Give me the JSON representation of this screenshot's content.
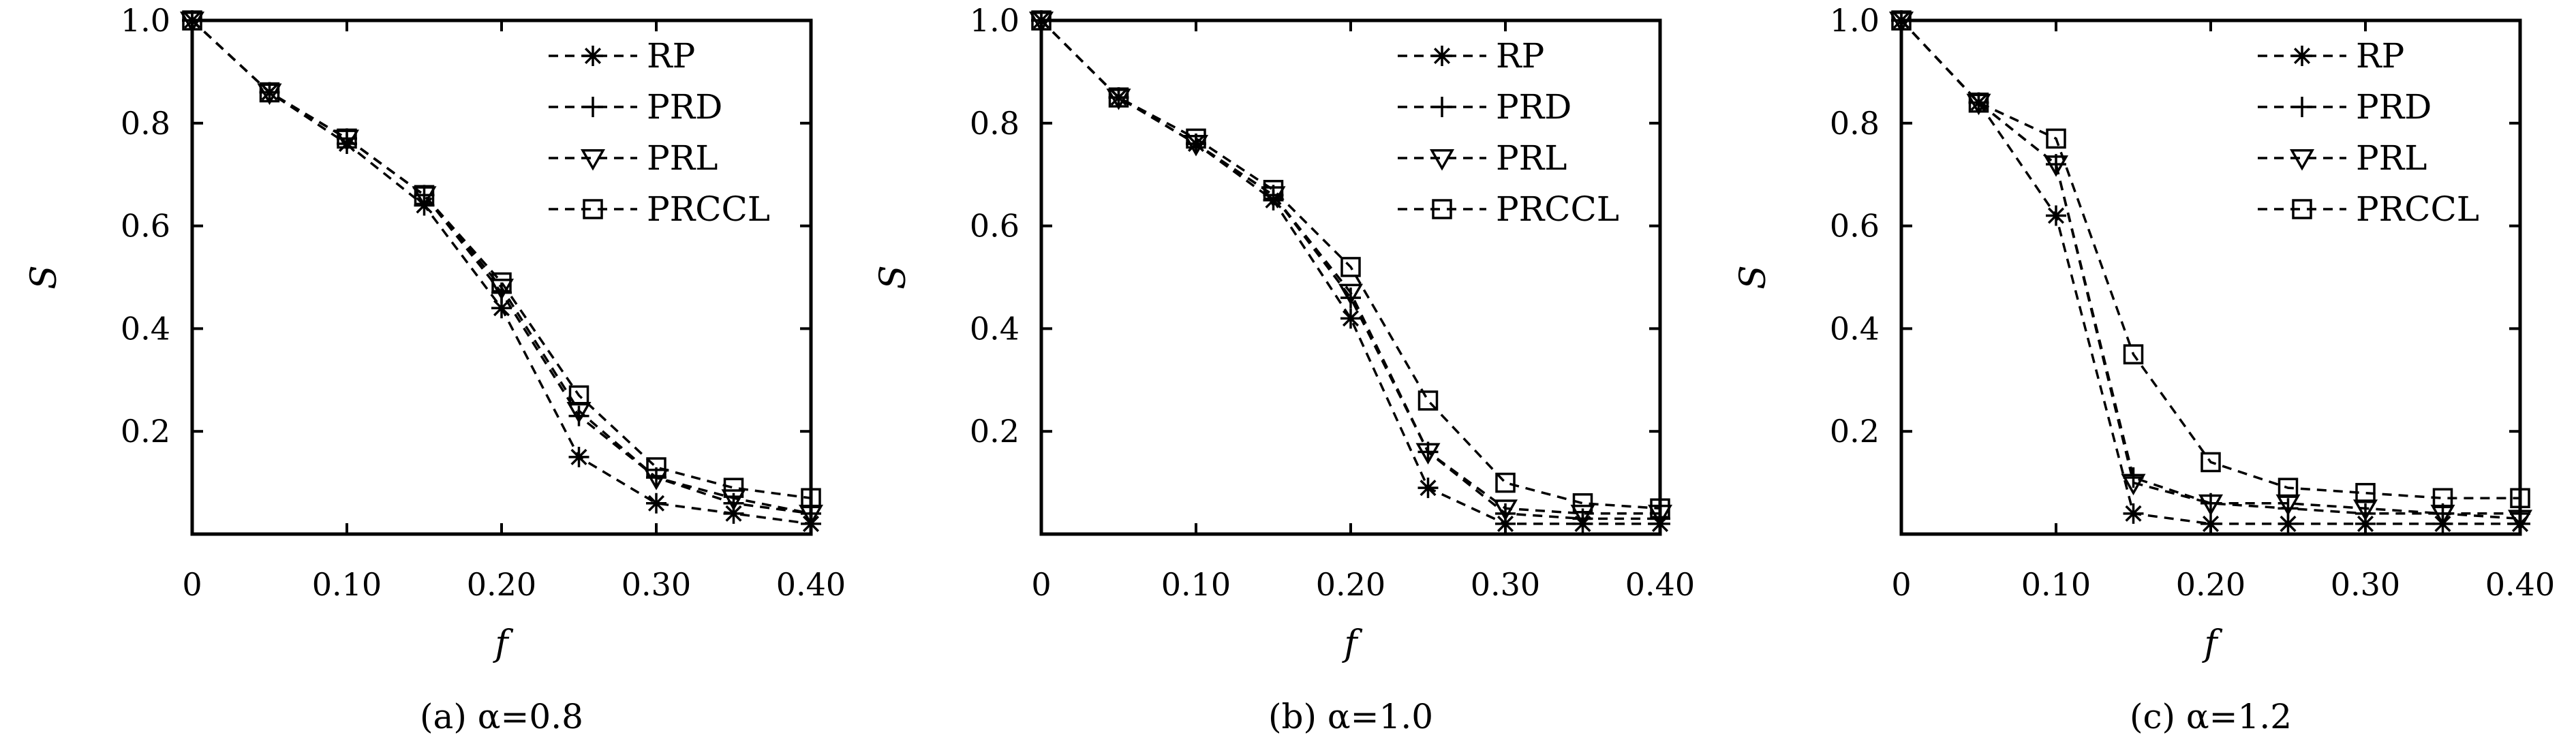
{
  "chart_data": [
    {
      "type": "line",
      "caption": "(a) α=0.8",
      "xlabel": "f",
      "ylabel": "S",
      "xlim": [
        0,
        0.4
      ],
      "ylim": [
        0,
        1.0
      ],
      "xticks": [
        0,
        0.1,
        0.2,
        0.3,
        0.4
      ],
      "xtick_labels": [
        "0",
        "0.10",
        "0.20",
        "0.30",
        "0.40"
      ],
      "yticks": [
        0.2,
        0.4,
        0.6,
        0.8,
        1.0
      ],
      "ytick_labels": [
        "0.2",
        "0.4",
        "0.6",
        "0.8",
        "1.0"
      ],
      "legend_position": "top-right",
      "x": [
        0,
        0.05,
        0.1,
        0.15,
        0.2,
        0.25,
        0.3,
        0.35,
        0.4
      ],
      "series": [
        {
          "name": "RP",
          "marker": "asterisk",
          "values": [
            1.0,
            0.86,
            0.76,
            0.64,
            0.44,
            0.15,
            0.06,
            0.04,
            0.02
          ]
        },
        {
          "name": "PRD",
          "marker": "plus",
          "values": [
            1.0,
            0.86,
            0.77,
            0.66,
            0.47,
            0.23,
            0.11,
            0.06,
            0.04
          ]
        },
        {
          "name": "PRL",
          "marker": "triangle-down",
          "values": [
            1.0,
            0.86,
            0.77,
            0.66,
            0.48,
            0.24,
            0.11,
            0.07,
            0.04
          ]
        },
        {
          "name": "PRCCL",
          "marker": "square",
          "values": [
            1.0,
            0.86,
            0.77,
            0.66,
            0.49,
            0.27,
            0.13,
            0.09,
            0.07
          ]
        }
      ]
    },
    {
      "type": "line",
      "caption": "(b) α=1.0",
      "xlabel": "f",
      "ylabel": "S",
      "xlim": [
        0,
        0.4
      ],
      "ylim": [
        0,
        1.0
      ],
      "xticks": [
        0,
        0.1,
        0.2,
        0.3,
        0.4
      ],
      "xtick_labels": [
        "0",
        "0.10",
        "0.20",
        "0.30",
        "0.40"
      ],
      "yticks": [
        0.2,
        0.4,
        0.6,
        0.8,
        1.0
      ],
      "ytick_labels": [
        "0.2",
        "0.4",
        "0.6",
        "0.8",
        "1.0"
      ],
      "legend_position": "top-right",
      "x": [
        0,
        0.05,
        0.1,
        0.15,
        0.2,
        0.25,
        0.3,
        0.35,
        0.4
      ],
      "series": [
        {
          "name": "RP",
          "marker": "asterisk",
          "values": [
            1.0,
            0.85,
            0.76,
            0.65,
            0.42,
            0.09,
            0.02,
            0.02,
            0.02
          ]
        },
        {
          "name": "PRD",
          "marker": "plus",
          "values": [
            1.0,
            0.85,
            0.76,
            0.66,
            0.46,
            0.16,
            0.04,
            0.03,
            0.03
          ]
        },
        {
          "name": "PRL",
          "marker": "triangle-down",
          "values": [
            1.0,
            0.85,
            0.76,
            0.66,
            0.47,
            0.16,
            0.05,
            0.04,
            0.04
          ]
        },
        {
          "name": "PRCCL",
          "marker": "square",
          "values": [
            1.0,
            0.85,
            0.77,
            0.67,
            0.52,
            0.26,
            0.1,
            0.06,
            0.05
          ]
        }
      ]
    },
    {
      "type": "line",
      "caption": "(c) α=1.2",
      "xlabel": "f",
      "ylabel": "S",
      "xlim": [
        0,
        0.4
      ],
      "ylim": [
        0,
        1.0
      ],
      "xticks": [
        0,
        0.1,
        0.2,
        0.3,
        0.4
      ],
      "xtick_labels": [
        "0",
        "0.10",
        "0.20",
        "0.30",
        "0.40"
      ],
      "yticks": [
        0.2,
        0.4,
        0.6,
        0.8,
        1.0
      ],
      "ytick_labels": [
        "0.2",
        "0.4",
        "0.6",
        "0.8",
        "1.0"
      ],
      "legend_position": "top-right",
      "x": [
        0,
        0.05,
        0.1,
        0.15,
        0.2,
        0.25,
        0.3,
        0.35,
        0.4
      ],
      "series": [
        {
          "name": "RP",
          "marker": "asterisk",
          "values": [
            1.0,
            0.84,
            0.62,
            0.04,
            0.02,
            0.02,
            0.02,
            0.02,
            0.02
          ]
        },
        {
          "name": "PRD",
          "marker": "plus",
          "values": [
            1.0,
            0.84,
            0.72,
            0.11,
            0.06,
            0.05,
            0.04,
            0.04,
            0.04
          ]
        },
        {
          "name": "PRL",
          "marker": "triangle-down",
          "values": [
            1.0,
            0.84,
            0.72,
            0.1,
            0.06,
            0.06,
            0.05,
            0.04,
            0.03
          ]
        },
        {
          "name": "PRCCL",
          "marker": "square",
          "values": [
            1.0,
            0.84,
            0.77,
            0.35,
            0.14,
            0.09,
            0.08,
            0.07,
            0.07
          ]
        }
      ]
    }
  ]
}
